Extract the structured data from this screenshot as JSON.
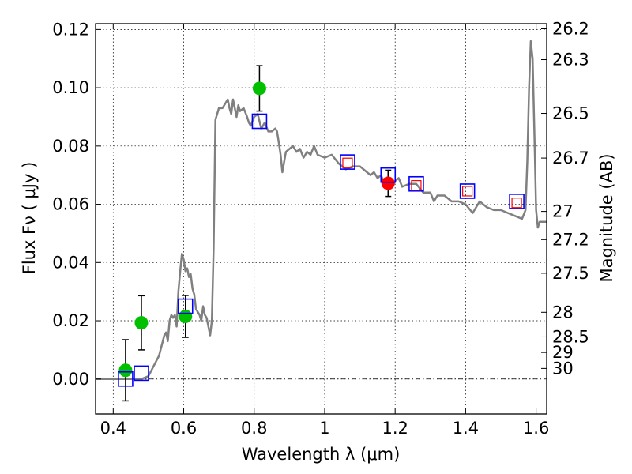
{
  "chart_data": {
    "type": "scatter",
    "xlabel": "Wavelength  λ (μm)",
    "ylabel": "Flux  Fν  ( μJy )",
    "y2label": "Magnitude (AB)",
    "xlim": [
      0.35,
      1.63
    ],
    "ylim": [
      -0.012,
      0.122
    ],
    "grid": true,
    "x_ticks": [
      {
        "value": 0.4,
        "label": "0.4"
      },
      {
        "value": 0.6,
        "label": "0.6"
      },
      {
        "value": 0.8,
        "label": "0.8"
      },
      {
        "value": 1.0,
        "label": "1"
      },
      {
        "value": 1.2,
        "label": "1.2"
      },
      {
        "value": 1.4,
        "label": "1.4"
      },
      {
        "value": 1.6,
        "label": "1.6"
      }
    ],
    "y_ticks": [
      {
        "value": 0.0,
        "label": "0.00"
      },
      {
        "value": 0.02,
        "label": "0.02"
      },
      {
        "value": 0.04,
        "label": "0.04"
      },
      {
        "value": 0.06,
        "label": "0.06"
      },
      {
        "value": 0.08,
        "label": "0.08"
      },
      {
        "value": 0.1,
        "label": "0.10"
      },
      {
        "value": 0.12,
        "label": "0.12"
      }
    ],
    "mag_ticks": [
      {
        "value": 26.2,
        "label": "26.2"
      },
      {
        "value": 26.3,
        "label": "26.3"
      },
      {
        "value": 26.5,
        "label": "26.5"
      },
      {
        "value": 26.7,
        "label": "26.7"
      },
      {
        "value": 27.0,
        "label": "27"
      },
      {
        "value": 27.2,
        "label": "27.2"
      },
      {
        "value": 27.5,
        "label": "27.5"
      },
      {
        "value": 28.0,
        "label": "28"
      },
      {
        "value": 28.5,
        "label": "28.5"
      },
      {
        "value": 29.0,
        "label": "29"
      },
      {
        "value": 30.0,
        "label": "30"
      }
    ],
    "sed_model": {
      "color": "#808080",
      "x": [
        0.35,
        0.48,
        0.5,
        0.53,
        0.545,
        0.55,
        0.555,
        0.56,
        0.565,
        0.57,
        0.575,
        0.58,
        0.585,
        0.59,
        0.595,
        0.6,
        0.605,
        0.61,
        0.615,
        0.62,
        0.625,
        0.63,
        0.635,
        0.64,
        0.645,
        0.65,
        0.655,
        0.66,
        0.665,
        0.67,
        0.675,
        0.68,
        0.685,
        0.69,
        0.7,
        0.71,
        0.72,
        0.725,
        0.73,
        0.735,
        0.74,
        0.745,
        0.75,
        0.755,
        0.76,
        0.77,
        0.78,
        0.785,
        0.79,
        0.8,
        0.81,
        0.82,
        0.83,
        0.84,
        0.85,
        0.86,
        0.865,
        0.87,
        0.875,
        0.88,
        0.89,
        0.9,
        0.91,
        0.92,
        0.93,
        0.94,
        0.95,
        0.96,
        0.97,
        0.98,
        1.0,
        1.02,
        1.04,
        1.06,
        1.08,
        1.1,
        1.12,
        1.13,
        1.14,
        1.15,
        1.16,
        1.17,
        1.18,
        1.19,
        1.2,
        1.21,
        1.22,
        1.24,
        1.26,
        1.28,
        1.3,
        1.31,
        1.32,
        1.34,
        1.36,
        1.38,
        1.4,
        1.42,
        1.44,
        1.46,
        1.48,
        1.5,
        1.52,
        1.54,
        1.56,
        1.57,
        1.575,
        1.58,
        1.585,
        1.59,
        1.595,
        1.6,
        1.605,
        1.61,
        1.615,
        1.63
      ],
      "y": [
        0.0,
        0.0,
        0.001,
        0.008,
        0.015,
        0.016,
        0.013,
        0.02,
        0.022,
        0.021,
        0.022,
        0.018,
        0.03,
        0.037,
        0.043,
        0.041,
        0.037,
        0.038,
        0.035,
        0.036,
        0.031,
        0.029,
        0.024,
        0.023,
        0.022,
        0.02,
        0.025,
        0.022,
        0.021,
        0.018,
        0.015,
        0.02,
        0.045,
        0.089,
        0.093,
        0.093,
        0.095,
        0.096,
        0.093,
        0.091,
        0.096,
        0.093,
        0.09,
        0.094,
        0.092,
        0.093,
        0.09,
        0.088,
        0.087,
        0.09,
        0.091,
        0.086,
        0.088,
        0.085,
        0.085,
        0.086,
        0.085,
        0.081,
        0.077,
        0.071,
        0.078,
        0.079,
        0.08,
        0.078,
        0.079,
        0.076,
        0.078,
        0.077,
        0.08,
        0.077,
        0.076,
        0.077,
        0.074,
        0.072,
        0.073,
        0.073,
        0.071,
        0.07,
        0.071,
        0.069,
        0.07,
        0.067,
        0.068,
        0.066,
        0.068,
        0.069,
        0.066,
        0.067,
        0.067,
        0.064,
        0.064,
        0.061,
        0.063,
        0.063,
        0.061,
        0.061,
        0.06,
        0.057,
        0.061,
        0.059,
        0.058,
        0.058,
        0.057,
        0.056,
        0.055,
        0.058,
        0.075,
        0.1,
        0.116,
        0.11,
        0.085,
        0.058,
        0.052,
        0.054,
        0.054,
        0.054
      ]
    },
    "photometry_points": {
      "name": "",
      "color": "#00c000",
      "x": [
        0.435,
        0.48,
        0.605,
        0.815
      ],
      "y": [
        0.003,
        0.0193,
        0.0215,
        0.0998
      ],
      "err": [
        0.0105,
        0.0093,
        0.0072,
        0.0078
      ]
    },
    "highlight_point": {
      "color": "#ff0000",
      "x": [
        1.18
      ],
      "y": [
        0.0672
      ],
      "err": [
        0.0045
      ]
    },
    "model_boxes": {
      "color": "#0000ff",
      "x": [
        0.435,
        0.48,
        0.605,
        0.815,
        1.065,
        1.18,
        1.26,
        1.405,
        1.545
      ],
      "y": [
        0.0,
        0.002,
        0.025,
        0.0885,
        0.0745,
        0.07,
        0.067,
        0.0645,
        0.061
      ]
    },
    "inner_boxes": {
      "color": "#ff0000",
      "x": [
        1.065,
        1.26,
        1.405,
        1.545
      ],
      "y": [
        0.0742,
        0.0665,
        0.0645,
        0.0605
      ]
    },
    "zero_line_style": "dash-dot"
  }
}
